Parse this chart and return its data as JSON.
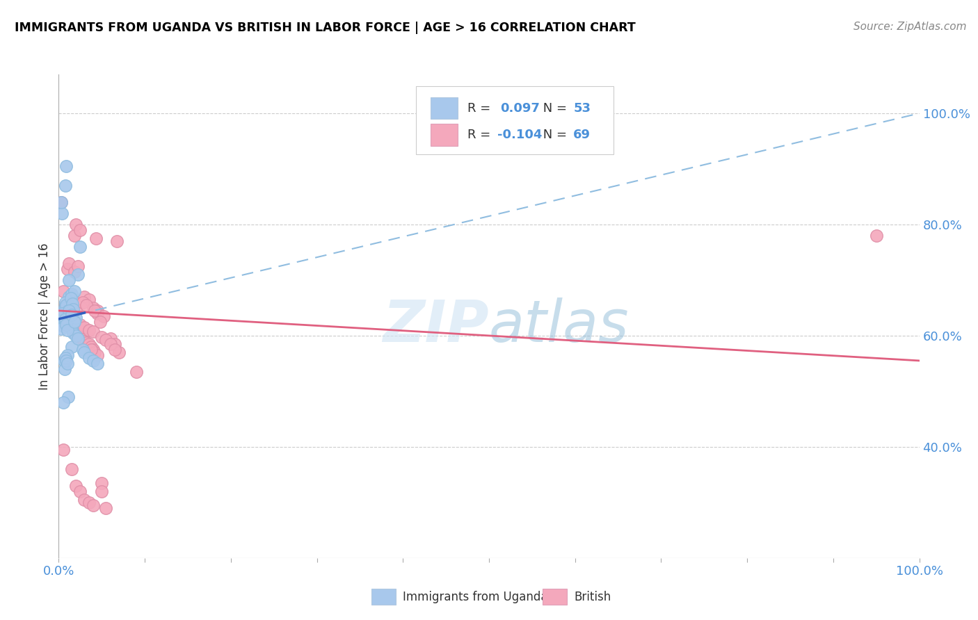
{
  "title": "IMMIGRANTS FROM UGANDA VS BRITISH IN LABOR FORCE | AGE > 16 CORRELATION CHART",
  "source": "Source: ZipAtlas.com",
  "ylabel": "In Labor Force | Age > 16",
  "watermark": "ZIPatlas",
  "r_uganda": 0.097,
  "n_uganda": 53,
  "r_british": -0.104,
  "n_british": 69,
  "color_uganda": "#a8c8ec",
  "color_british": "#f4a8bc",
  "color_uganda_line_dash": "#90bde0",
  "color_uganda_line_solid": "#3060c0",
  "color_british_line": "#e06080",
  "xlim": [
    0,
    100
  ],
  "ylim": [
    20,
    107
  ],
  "yticks_right": [
    40,
    60,
    80,
    100
  ],
  "uganda_x": [
    1.2,
    1.5,
    1.8,
    0.8,
    0.7,
    0.9,
    1.1,
    1.3,
    0.5,
    0.6,
    1.0,
    1.4,
    1.6,
    1.7,
    2.0,
    2.2,
    2.5,
    0.4,
    0.3,
    0.8,
    0.9,
    1.2,
    1.5,
    2.8,
    3.0,
    1.0,
    0.6,
    0.7,
    1.1,
    0.5,
    0.4,
    1.3,
    1.8,
    2.2,
    0.8,
    0.9,
    1.0,
    1.4,
    1.6,
    1.7,
    2.0,
    0.6,
    0.5,
    0.3,
    3.5,
    4.0,
    4.5,
    1.2,
    0.8,
    0.9,
    1.0,
    1.5,
    1.8
  ],
  "uganda_y": [
    67.0,
    67.5,
    68.0,
    66.0,
    65.0,
    65.5,
    64.5,
    63.8,
    63.0,
    62.5,
    62.0,
    61.5,
    61.0,
    60.5,
    60.0,
    71.0,
    76.0,
    82.0,
    84.0,
    87.0,
    90.5,
    70.0,
    58.0,
    57.5,
    57.0,
    56.5,
    55.5,
    54.0,
    49.0,
    48.0,
    64.0,
    63.5,
    62.8,
    59.5,
    56.0,
    55.5,
    55.0,
    66.8,
    65.8,
    64.8,
    63.2,
    62.2,
    61.8,
    61.2,
    56.0,
    55.5,
    55.0,
    64.5,
    63.0,
    62.0,
    61.0,
    63.8,
    62.5
  ],
  "british_x": [
    0.5,
    0.8,
    1.0,
    1.2,
    1.5,
    1.8,
    2.0,
    2.2,
    2.5,
    2.8,
    3.0,
    3.2,
    3.5,
    3.8,
    4.0,
    4.2,
    4.5,
    1.0,
    1.2,
    1.8,
    2.0,
    2.5,
    3.0,
    3.5,
    4.0,
    4.5,
    0.5,
    1.5,
    2.0,
    2.5,
    3.0,
    3.5,
    4.0,
    5.0,
    5.0,
    5.5,
    6.0,
    6.5,
    7.0,
    0.8,
    0.5,
    0.3,
    1.5,
    2.0,
    1.0,
    0.8,
    0.6,
    1.2,
    2.5,
    3.0,
    3.5,
    4.0,
    5.0,
    5.5,
    4.5,
    6.0,
    6.5,
    9.0,
    2.8,
    3.2,
    4.2,
    5.2,
    4.8,
    1.8,
    2.2,
    3.8,
    4.3,
    6.8,
    95.0
  ],
  "british_y": [
    64.0,
    63.0,
    62.5,
    62.0,
    61.5,
    61.0,
    60.5,
    60.0,
    59.8,
    59.5,
    59.0,
    58.8,
    58.5,
    58.0,
    57.5,
    57.0,
    56.5,
    72.0,
    73.0,
    78.0,
    80.0,
    79.0,
    67.0,
    66.5,
    65.0,
    64.5,
    39.5,
    36.0,
    33.0,
    32.0,
    30.5,
    30.0,
    29.5,
    33.5,
    32.0,
    29.0,
    59.5,
    58.5,
    57.0,
    65.5,
    68.0,
    84.0,
    65.0,
    64.8,
    65.8,
    65.2,
    64.2,
    63.0,
    62.0,
    61.5,
    61.0,
    60.8,
    59.8,
    59.2,
    64.0,
    58.5,
    57.5,
    53.5,
    66.0,
    65.5,
    64.5,
    63.5,
    62.5,
    71.5,
    72.5,
    57.5,
    77.5,
    77.0,
    78.0
  ]
}
